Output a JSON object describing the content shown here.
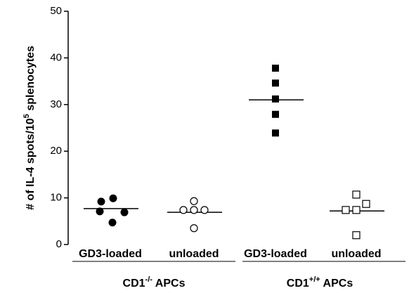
{
  "chart_data": {
    "type": "dot-plot",
    "ylabel": [
      "# of IL-4 spots/10",
      "5",
      " splenocytes"
    ],
    "ylim": [
      0,
      50
    ],
    "yticks": [
      0,
      10,
      20,
      30,
      40,
      50
    ],
    "categories": [
      "GD3-loaded",
      "unloaded",
      "GD3-loaded",
      "unloaded"
    ],
    "markers": [
      "filled-circle",
      "open-circle",
      "filled-square",
      "open-square"
    ],
    "points": [
      [
        9.2,
        9.9,
        7.1,
        6.9,
        4.7
      ],
      [
        9.3,
        7.4,
        7.4,
        7.4,
        3.5
      ],
      [
        37.8,
        34.6,
        31.2,
        27.9,
        23.9
      ],
      [
        10.7,
        8.7,
        7.4,
        7.4,
        2.0
      ]
    ],
    "means": [
      7.7,
      6.9,
      31.0,
      7.2
    ],
    "groups": [
      [
        "CD1",
        "-/-",
        " APCs"
      ],
      [
        "CD1",
        "+/+",
        " APCs"
      ]
    ]
  }
}
